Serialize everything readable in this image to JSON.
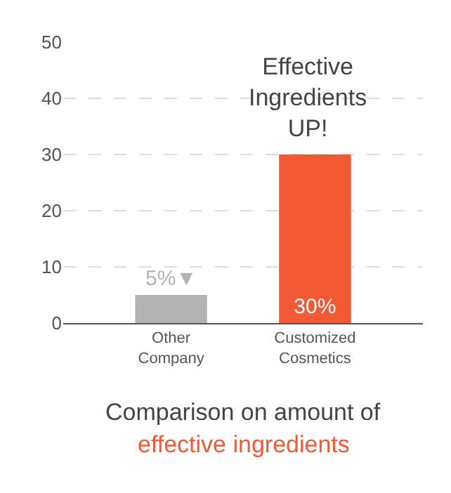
{
  "chart_data": {
    "type": "bar",
    "title": "Comparison on amount of",
    "subtitle": "effective ingredients",
    "categories": [
      "Other Company",
      "Customized Cosmetics"
    ],
    "values": [
      5,
      30
    ],
    "colors": [
      "#b3b3b3",
      "#f15a35"
    ],
    "value_labels": [
      "5%▼",
      "30%"
    ],
    "ylim": [
      0,
      50
    ],
    "yticks": [
      0,
      10,
      20,
      30,
      40,
      50
    ],
    "grid": "y",
    "annotations": [
      "Effective\nIngredients\nUP!"
    ]
  }
}
